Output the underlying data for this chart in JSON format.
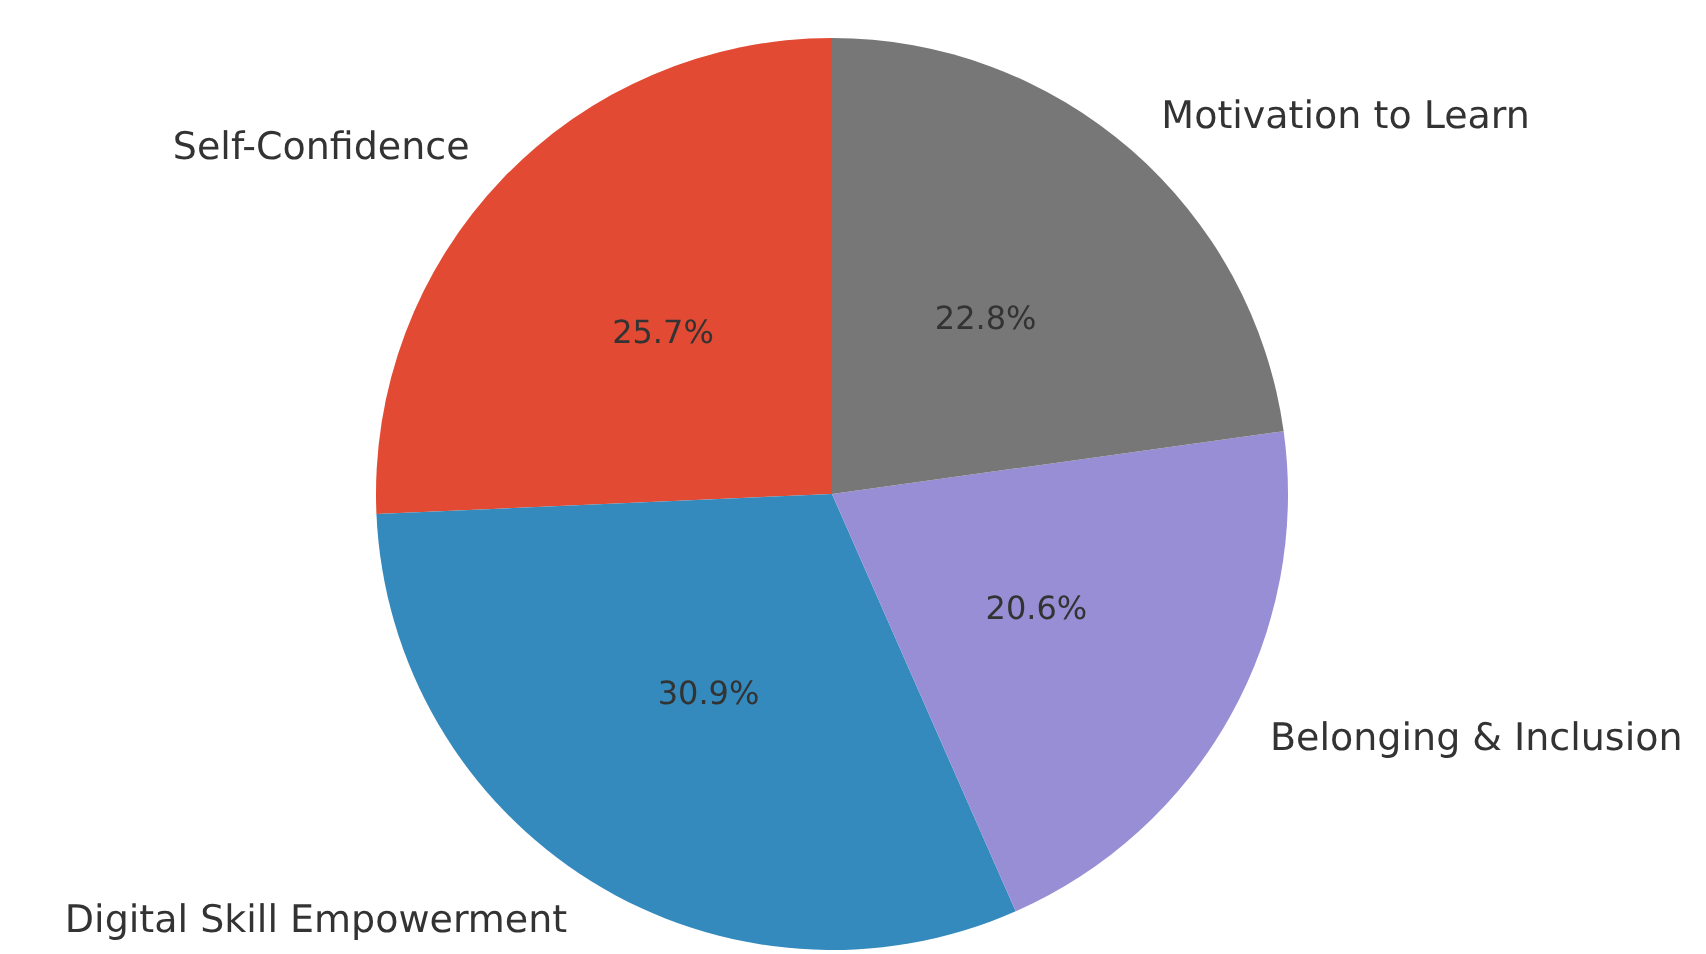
{
  "chart_data": {
    "type": "pie",
    "categories": [
      "Self-Confidence",
      "Digital Skill Empowerment",
      "Belonging & Inclusion",
      "Motivation to Learn"
    ],
    "values": [
      25.7,
      30.9,
      20.6,
      22.8
    ],
    "colors": [
      "#e24a33",
      "#348abd",
      "#988ed5",
      "#777777"
    ],
    "value_labels": [
      "25.7%",
      "30.9%",
      "20.6%",
      "22.8%"
    ],
    "legend": false
  }
}
